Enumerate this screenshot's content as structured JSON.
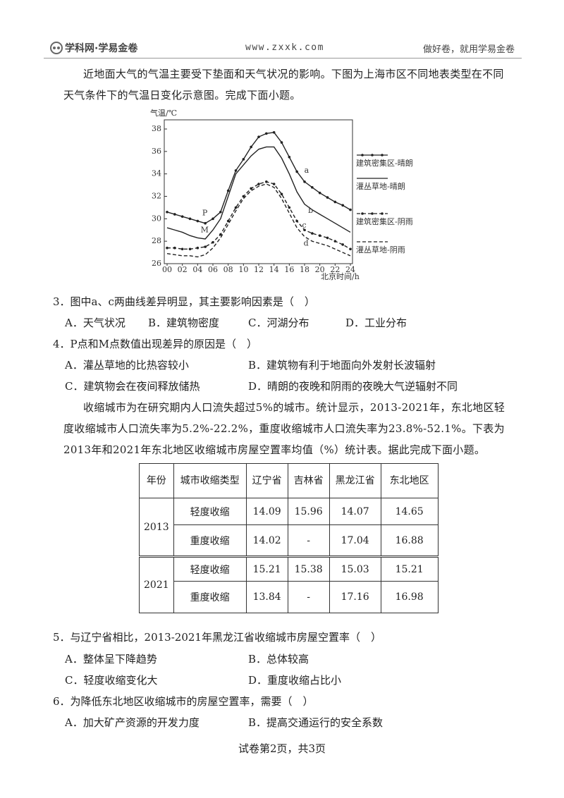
{
  "header": {
    "logo": "学科网·学易金卷",
    "url": "www.zxxk.com",
    "slogan": "做好卷，就用学易金卷"
  },
  "passage1": "近地面大气的气温主要受下垫面和天气状况的影响。下图为上海市区不同地表类型在不同天气条件下的气温日变化示意图。完成下面小题。",
  "figure": {
    "type": "line",
    "y_label": "气温/℃",
    "x_label": "北京时间/h",
    "x": [
      0,
      1,
      2,
      3,
      4,
      5,
      6,
      7,
      8,
      9,
      10,
      11,
      12,
      13,
      14,
      15,
      16,
      17,
      18,
      19,
      20,
      21,
      22,
      23,
      24
    ],
    "xlim": [
      0,
      24
    ],
    "xticks": [
      {
        "value": 0,
        "label": "00"
      },
      {
        "value": 2,
        "label": "02"
      },
      {
        "value": 4,
        "label": "04"
      },
      {
        "value": 6,
        "label": "06"
      },
      {
        "value": 8,
        "label": "08"
      },
      10,
      12,
      14,
      16,
      18,
      20,
      22,
      24
    ],
    "ylim": [
      26,
      38
    ],
    "yticks": [
      26,
      28,
      30,
      32,
      34,
      36,
      38
    ],
    "series": [
      {
        "name": "建筑密集区-晴朗",
        "label": "a",
        "color": "#222",
        "dashed": false,
        "markers": true,
        "values": [
          30.6,
          30.4,
          30.2,
          30.0,
          29.8,
          29.6,
          30.0,
          30.6,
          32.5,
          34.3,
          35.3,
          36.4,
          37.3,
          37.6,
          37.7,
          36.8,
          35.5,
          34.2,
          33.3,
          32.8,
          32.3,
          31.9,
          31.5,
          31.2,
          30.8
        ]
      },
      {
        "name": "灌丛草地-晴朗",
        "label": "b",
        "color": "#222",
        "dashed": false,
        "markers": false,
        "values": [
          29.2,
          29.0,
          28.8,
          28.5,
          28.3,
          28.2,
          29.0,
          30.0,
          32.0,
          34.0,
          34.8,
          35.6,
          36.2,
          36.4,
          36.4,
          35.4,
          34.0,
          32.4,
          31.3,
          30.8,
          30.4,
          30.0,
          29.6,
          29.2,
          28.8
        ]
      },
      {
        "name": "建筑密集区-阴雨",
        "label": "c",
        "color": "#222",
        "dashed": true,
        "markers": true,
        "values": [
          27.4,
          27.4,
          27.3,
          27.3,
          27.4,
          27.5,
          27.9,
          28.6,
          29.8,
          31.0,
          32.0,
          32.7,
          33.1,
          33.3,
          33.1,
          32.2,
          31.0,
          29.8,
          29.0,
          28.7,
          28.5,
          28.3,
          28.0,
          27.7,
          27.3
        ]
      },
      {
        "name": "灌丛草地-阴雨",
        "label": "d",
        "color": "#222",
        "dashed": true,
        "markers": false,
        "values": [
          26.9,
          26.8,
          26.7,
          26.7,
          26.6,
          26.8,
          27.4,
          28.3,
          29.5,
          30.7,
          31.8,
          32.5,
          32.9,
          33.1,
          32.8,
          31.8,
          30.5,
          29.2,
          28.4,
          28.0,
          27.8,
          27.6,
          27.3,
          27.0,
          26.7
        ]
      }
    ],
    "annotations": [
      "P",
      "M"
    ]
  },
  "questions_a": [
    {
      "stem": "3．图中a、c两曲线差异明显，其主要影响因素是（　）",
      "options": [
        "A．天气状况",
        "B．建筑物密度",
        "C．河湖分布",
        "D．工业分布"
      ]
    },
    {
      "stem": "4．P点和M点数值出现差异的原因是（　）",
      "options": [
        "A．灌丛草地的比热容较小",
        "B．建筑物有利于地面向外发射长波辐射",
        "C．建筑物会在夜间释放储热",
        "D．晴朗的夜晚和阴雨的夜晚大气逆辐射不同"
      ]
    }
  ],
  "passage2": "收缩城市为在研究期内人口流失超过5%的城市。统计显示，2013-2021年，东北地区轻度收缩城市人口流失率为5.2%-22.2%，重度收缩城市人口流失率为23.8%-52.1%。下表为2013年和2021年东北地区收缩城市房屋空置率均值（%）统计表。据此完成下面小题。",
  "table": {
    "header": [
      "年份",
      "城市收缩类型",
      "辽宁省",
      "吉林省",
      "黑龙江省",
      "东北地区"
    ],
    "groups": [
      {
        "year": "2013",
        "rows": [
          [
            "轻度收缩",
            14.09,
            15.96,
            14.07,
            14.65
          ],
          [
            "重度收缩",
            14.02,
            "-",
            17.04,
            16.88
          ]
        ]
      },
      {
        "year": "2021",
        "rows": [
          [
            "轻度收缩",
            15.21,
            15.38,
            15.03,
            15.21
          ],
          [
            "重度收缩",
            13.84,
            "-",
            17.16,
            16.98
          ]
        ]
      }
    ]
  },
  "questions_b": [
    {
      "stem": "5．与辽宁省相比，2013-2021年黑龙江省收缩城市房屋空置率（　）",
      "options": [
        "A．整体呈下降趋势",
        "B．总体较高",
        "C．轻度收缩变化大",
        "D．重度收缩占比小"
      ]
    },
    {
      "stem": "6．为降低东北地区收缩城市的房屋空置率，需要（　）",
      "options": [
        "A．加大矿产资源的开发力度",
        "B．提高交通运行的安全系数"
      ]
    }
  ],
  "footer": "试卷第2页，共3页"
}
